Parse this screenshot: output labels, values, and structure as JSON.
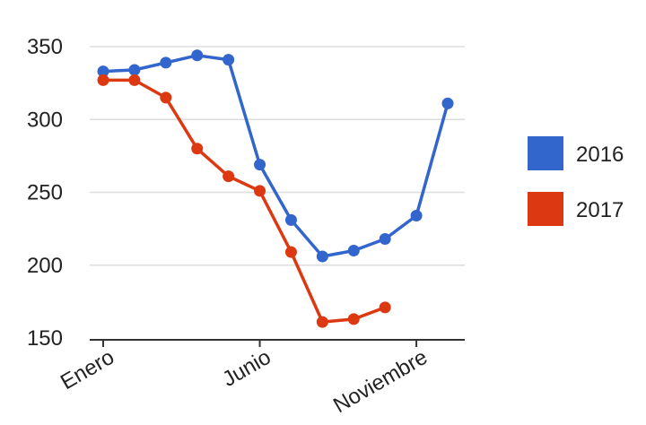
{
  "chart_data": {
    "type": "line",
    "title": "",
    "xlabel": "",
    "ylabel": "",
    "x": [
      1,
      2,
      3,
      4,
      5,
      6,
      7,
      8,
      9,
      10,
      11,
      12
    ],
    "x_tick_labels": [
      {
        "x": 1,
        "label": "Enero"
      },
      {
        "x": 6,
        "label": "Junio"
      },
      {
        "x": 11,
        "label": "Noviembre"
      }
    ],
    "y_ticks": [
      150,
      200,
      250,
      300,
      350
    ],
    "ylim": [
      150,
      350
    ],
    "grid": true,
    "legend_position": "right",
    "series": [
      {
        "name": "2016",
        "color": "#3366cc",
        "values": [
          333,
          334,
          339,
          344,
          341,
          269,
          231,
          206,
          210,
          218,
          234,
          311
        ]
      },
      {
        "name": "2017",
        "color": "#dc3912",
        "values": [
          327,
          327,
          315,
          280,
          261,
          251,
          209,
          161,
          163,
          171,
          null,
          null
        ]
      }
    ]
  }
}
